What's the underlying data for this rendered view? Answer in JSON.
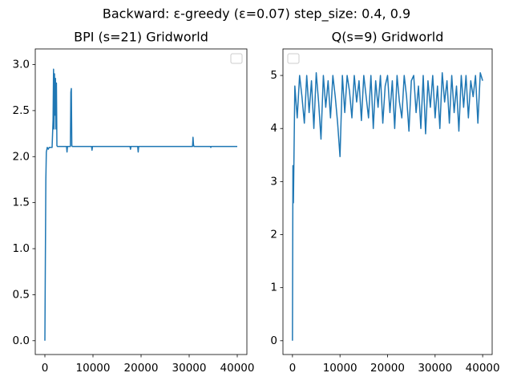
{
  "title": "Backward: ε-greedy (ε=0.07) step_size: 0.4, 0.9",
  "chart_data": [
    {
      "type": "line",
      "title": "BPI (s=21) Gridworld",
      "color": "#1f77b4",
      "legend": "upper right",
      "x": [
        0,
        100,
        200,
        300,
        500,
        700,
        900,
        1200,
        1500,
        1700,
        1800,
        1900,
        2000,
        2100,
        2200,
        2300,
        2400,
        2500,
        2600,
        3000,
        4000,
        4500,
        4600,
        4700,
        5000,
        5300,
        5400,
        5500,
        5600,
        5700,
        6000,
        8000,
        9700,
        9800,
        9900,
        12000,
        15000,
        17700,
        17800,
        17900,
        19300,
        19400,
        19500,
        22000,
        25000,
        28000,
        30700,
        30800,
        30900,
        31000,
        34400,
        34500,
        34600,
        37000,
        40000
      ],
      "values": [
        0,
        0.9,
        1.75,
        2.05,
        2.1,
        2.08,
        2.1,
        2.1,
        2.1,
        2.4,
        2.95,
        2.3,
        2.9,
        2.45,
        2.85,
        2.3,
        2.8,
        2.12,
        2.11,
        2.11,
        2.11,
        2.11,
        2.05,
        2.11,
        2.11,
        2.11,
        2.7,
        2.74,
        2.12,
        2.11,
        2.11,
        2.11,
        2.11,
        2.07,
        2.11,
        2.11,
        2.11,
        2.11,
        2.08,
        2.11,
        2.11,
        2.05,
        2.11,
        2.11,
        2.11,
        2.11,
        2.11,
        2.21,
        2.13,
        2.11,
        2.11,
        2.1,
        2.11,
        2.11,
        2.11
      ],
      "xlim": [
        -2000,
        42000
      ],
      "ylim": [
        -0.15,
        3.17
      ],
      "xticks": [
        0,
        10000,
        20000,
        30000,
        40000
      ],
      "yticks": [
        {
          "value": 0,
          "label": "0.0"
        },
        0.5,
        {
          "value": 1,
          "label": "1.0"
        },
        1.5,
        {
          "value": 2,
          "label": "2.0"
        },
        2.5,
        {
          "value": 3,
          "label": "3.0"
        }
      ]
    },
    {
      "type": "line",
      "title": "Q(s=9) Gridworld",
      "color": "#1f77b4",
      "legend": "upper left",
      "x": [
        0,
        100,
        200,
        500,
        1000,
        1500,
        2000,
        2500,
        3000,
        3500,
        4000,
        4500,
        5000,
        5500,
        6000,
        6500,
        7000,
        7500,
        8000,
        8500,
        9000,
        9500,
        10000,
        10500,
        11000,
        11500,
        12000,
        12500,
        13000,
        13500,
        14000,
        14500,
        15000,
        15500,
        16000,
        16500,
        17000,
        17500,
        18000,
        18500,
        19000,
        19500,
        20000,
        20500,
        21000,
        21500,
        22000,
        22500,
        23000,
        23500,
        24000,
        24500,
        25000,
        25500,
        26000,
        26500,
        27000,
        27500,
        28000,
        28500,
        29000,
        29500,
        30000,
        30500,
        31000,
        31500,
        32000,
        32500,
        33000,
        33500,
        34000,
        34500,
        35000,
        35500,
        36000,
        36500,
        37000,
        37500,
        38000,
        38500,
        39000,
        39500,
        40000
      ],
      "values": [
        0,
        3.3,
        2.6,
        4.8,
        4.2,
        5.0,
        4.6,
        4.1,
        5.0,
        4.3,
        4.9,
        4.0,
        5.05,
        4.5,
        3.8,
        5.0,
        4.4,
        4.9,
        4.2,
        5.0,
        4.6,
        4.1,
        3.47,
        5.0,
        4.3,
        5.0,
        4.7,
        4.2,
        5.0,
        4.5,
        4.9,
        4.15,
        5.0,
        4.6,
        4.2,
        5.0,
        4.0,
        4.9,
        4.4,
        5.0,
        4.1,
        4.8,
        5.0,
        4.3,
        4.9,
        4.0,
        5.0,
        4.5,
        4.2,
        5.0,
        4.6,
        3.95,
        4.9,
        5.0,
        4.3,
        4.8,
        4.0,
        5.0,
        3.9,
        4.9,
        4.4,
        5.0,
        4.2,
        4.8,
        4.0,
        5.05,
        4.5,
        4.9,
        4.1,
        5.0,
        4.3,
        4.8,
        3.95,
        5.0,
        4.4,
        5.0,
        4.2,
        4.9,
        4.6,
        5.0,
        4.1,
        5.05,
        4.9
      ],
      "xlim": [
        -2000,
        42000
      ],
      "ylim": [
        -0.26,
        5.5
      ],
      "xticks": [
        0,
        10000,
        20000,
        30000,
        40000
      ],
      "yticks": [
        0,
        1,
        2,
        3,
        4,
        5
      ]
    }
  ]
}
